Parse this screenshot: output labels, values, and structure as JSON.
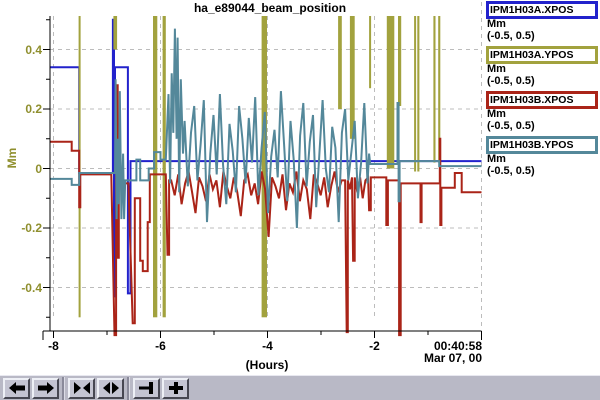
{
  "title": "ha_e89044_beam_position",
  "colors": {
    "blue": "#2222cc",
    "olive": "#a2a23e",
    "red": "#aa2418",
    "teal": "#54889a",
    "y_axis_text": "#8f8f2e",
    "grid": "#bcbcbc",
    "axis": "#000000",
    "toolbar_bg": "#b9b9c6"
  },
  "legend": [
    {
      "name": "IPM1H03A.XPOS",
      "unit": "Mm",
      "range": "(-0.5, 0.5)",
      "color": "#2222cc"
    },
    {
      "name": "IPM1H03A.YPOS",
      "unit": "Mm",
      "range": "(-0.5, 0.5)",
      "color": "#a2a23e"
    },
    {
      "name": "IPM1H03B.XPOS",
      "unit": "Mm",
      "range": "(-0.5, 0.5)",
      "color": "#aa2418"
    },
    {
      "name": "IPM1H03B.YPOS",
      "unit": "Mm",
      "range": "(-0.5, 0.5)",
      "color": "#54889a"
    }
  ],
  "y_axis": {
    "label": "Mm",
    "ticks": [
      {
        "v": 0.4,
        "label": "0.4"
      },
      {
        "v": 0.2,
        "label": "0.2"
      },
      {
        "v": 0,
        "label": "0"
      },
      {
        "v": -0.2,
        "label": "-0.2"
      },
      {
        "v": -0.4,
        "label": "-0.4"
      }
    ],
    "minor": [
      0.5,
      0.3,
      0.1,
      -0.1,
      -0.3,
      -0.5
    ]
  },
  "x_axis": {
    "label": "(Hours)",
    "ticks": [
      {
        "h": -8,
        "label": "-8"
      },
      {
        "h": -6,
        "label": "-6"
      },
      {
        "h": -4,
        "label": "-4"
      },
      {
        "h": -2,
        "label": "-2"
      }
    ],
    "minor": [
      -7,
      -5,
      -3,
      -1
    ],
    "end_time": "00:40:58",
    "end_date": "Mar 07, 00"
  },
  "toolbar": {
    "buttons": [
      {
        "name": "pan-left-button",
        "icon": "arrow-left"
      },
      {
        "name": "pan-right-button",
        "icon": "arrow-right"
      },
      {
        "name": "compress-time-button",
        "icon": "triangles-in"
      },
      {
        "name": "expand-time-button",
        "icon": "triangles-out"
      },
      {
        "name": "go-to-now-button",
        "icon": "arrow-to-bar"
      },
      {
        "name": "zoom-plus-button",
        "icon": "plus"
      }
    ],
    "groups": [
      2,
      2,
      2
    ]
  },
  "chart_data": {
    "type": "line",
    "title": "ha_e89044_beam_position",
    "xlabel": "(Hours)",
    "ylabel": "Mm",
    "xlim": [
      -8.06,
      0
    ],
    "ylim": [
      -0.5,
      0.5
    ],
    "grid": true,
    "legend_position": "right",
    "series": [
      {
        "name": "IPM1H03A.XPOS",
        "color": "#2222cc",
        "points": [
          [
            -8.06,
            0.34
          ],
          [
            -7.52,
            0.34
          ],
          [
            -7.52,
            -0.015
          ],
          [
            -6.89,
            -0.015
          ],
          [
            -6.89,
            0.5
          ],
          [
            -6.87,
            0.5
          ],
          [
            -6.87,
            -0.43
          ],
          [
            -6.85,
            -0.43
          ],
          [
            -6.85,
            0.34
          ],
          [
            -6.61,
            0.34
          ],
          [
            -6.61,
            -0.42
          ],
          [
            -6.56,
            -0.42
          ],
          [
            -6.56,
            0.025
          ],
          [
            0,
            0.025
          ]
        ]
      },
      {
        "name": "IPM1H03B.XPOS",
        "color": "#aa2418",
        "points": [
          [
            -8.06,
            0.09
          ],
          [
            -7.66,
            0.09
          ],
          [
            -7.66,
            0.06
          ],
          [
            -7.52,
            0.06
          ],
          [
            -7.52,
            -0.13
          ],
          [
            -7.5,
            -0.13
          ],
          [
            -7.5,
            -0.02
          ],
          [
            -6.92,
            -0.02
          ],
          [
            -6.86,
            -0.56
          ],
          [
            -6.83,
            -0.56
          ],
          [
            -6.83,
            0.28
          ],
          [
            -6.8,
            0.28
          ],
          [
            -6.8,
            -0.3
          ],
          [
            -6.78,
            -0.3
          ],
          [
            -6.78,
            0.1
          ],
          [
            -6.76,
            0.1
          ],
          [
            -6.76,
            -0.05
          ],
          [
            -6.6,
            -0.05
          ],
          [
            -6.52,
            -0.52
          ],
          [
            -6.48,
            -0.52
          ],
          [
            -6.48,
            -0.1
          ],
          [
            -6.38,
            -0.1
          ],
          [
            -6.38,
            -0.31
          ],
          [
            -6.33,
            -0.31
          ],
          [
            -6.33,
            -0.345
          ],
          [
            -6.24,
            -0.345
          ],
          [
            -6.24,
            -0.18
          ],
          [
            -6.2,
            -0.18
          ],
          [
            -6.2,
            -0.02
          ],
          [
            -5.9,
            -0.02
          ],
          [
            -5.87,
            -0.29
          ],
          [
            -5.84,
            -0.29
          ],
          [
            -5.84,
            -0.04
          ],
          [
            -5.8,
            -0.04
          ],
          [
            -5.735,
            -0.09
          ],
          [
            -5.67,
            -0.02
          ],
          [
            -5.605,
            -0.12
          ],
          [
            -5.54,
            -0.05
          ],
          [
            -5.475,
            -0.01
          ],
          [
            -5.41,
            -0.08
          ],
          [
            -5.345,
            -0.15
          ],
          [
            -5.28,
            -0.03
          ],
          [
            -5.215,
            -0.06
          ],
          [
            -5.15,
            -0.11
          ],
          [
            -5.085,
            -0.02
          ],
          [
            -5.02,
            -0.07
          ],
          [
            -4.955,
            -0.04
          ],
          [
            -4.89,
            -0.13
          ],
          [
            -4.825,
            -0.01
          ],
          [
            -4.76,
            -0.06
          ],
          [
            -4.695,
            -0.1
          ],
          [
            -4.63,
            -0.03
          ],
          [
            -4.565,
            -0.08
          ],
          [
            -4.5,
            -0.16
          ],
          [
            -4.435,
            -0.04
          ],
          [
            -4.37,
            -0.02
          ],
          [
            -4.305,
            -0.09
          ],
          [
            -4.24,
            -0.05
          ],
          [
            -4.175,
            -0.12
          ],
          [
            -4.11,
            -0.01
          ],
          [
            -4.045,
            -0.07
          ],
          [
            -3.98,
            -0.23
          ],
          [
            -3.915,
            -0.03
          ],
          [
            -3.85,
            -0.06
          ],
          [
            -3.785,
            -0.1
          ],
          [
            -3.72,
            -0.02
          ],
          [
            -3.655,
            -0.14
          ],
          [
            -3.59,
            -0.05
          ],
          [
            -3.525,
            -0.08
          ],
          [
            -3.46,
            -0.01
          ],
          [
            -3.395,
            -0.11
          ],
          [
            -3.33,
            -0.04
          ],
          [
            -3.265,
            -0.07
          ],
          [
            -3.2,
            -0.17
          ],
          [
            -3.135,
            -0.02
          ],
          [
            -3.07,
            -0.05
          ],
          [
            -3.005,
            -0.09
          ],
          [
            -2.94,
            -0.03
          ],
          [
            -2.875,
            -0.13
          ],
          [
            -2.81,
            -0.06
          ],
          [
            -2.745,
            -0.01
          ],
          [
            -2.68,
            -0.08
          ],
          [
            -2.615,
            -0.04
          ],
          [
            -2.55,
            -0.04
          ],
          [
            -2.52,
            -0.55
          ],
          [
            -2.5,
            -0.55
          ],
          [
            -2.5,
            -0.04
          ],
          [
            -2.46,
            -0.07
          ],
          [
            -2.42,
            -0.03
          ],
          [
            -2.4,
            -0.31
          ],
          [
            -2.37,
            -0.31
          ],
          [
            -2.37,
            -0.03
          ],
          [
            -2.32,
            -0.08
          ],
          [
            -2.27,
            -0.03
          ],
          [
            -2.22,
            -0.1
          ],
          [
            -2.17,
            -0.04
          ],
          [
            -2.12,
            -0.03
          ],
          [
            -2.1,
            -0.14
          ],
          [
            -2.07,
            -0.14
          ],
          [
            -2.07,
            -0.03
          ],
          [
            -1.78,
            -0.03
          ],
          [
            -1.78,
            -0.19
          ],
          [
            -1.75,
            -0.19
          ],
          [
            -1.75,
            -0.04
          ],
          [
            -1.54,
            -0.04
          ],
          [
            -1.54,
            -0.56
          ],
          [
            -1.51,
            -0.56
          ],
          [
            -1.51,
            -0.05
          ],
          [
            -1.14,
            -0.05
          ],
          [
            -1.14,
            -0.18
          ],
          [
            -1.12,
            -0.18
          ],
          [
            -1.12,
            -0.05
          ],
          [
            -0.78,
            -0.05
          ],
          [
            -0.78,
            0.1
          ],
          [
            -0.77,
            0.1
          ],
          [
            -0.77,
            -0.19
          ],
          [
            -0.75,
            -0.19
          ],
          [
            -0.75,
            -0.065
          ],
          [
            -0.5,
            -0.065
          ],
          [
            -0.5,
            -0.015
          ],
          [
            -0.37,
            -0.015
          ],
          [
            -0.37,
            -0.08
          ],
          [
            0,
            -0.08
          ]
        ]
      },
      {
        "name": "IPM1H03B.YPOS",
        "color": "#54889a",
        "points": [
          [
            -8.06,
            -0.035
          ],
          [
            -7.66,
            -0.035
          ],
          [
            -7.66,
            -0.055
          ],
          [
            -7.52,
            -0.055
          ],
          [
            -7.52,
            -0.015
          ],
          [
            -6.85,
            -0.015
          ],
          [
            -6.84,
            0.3
          ],
          [
            -6.82,
            -0.17
          ],
          [
            -6.8,
            0.1
          ],
          [
            -6.78,
            -0.12
          ],
          [
            -6.76,
            0.26
          ],
          [
            -6.73,
            -0.17
          ],
          [
            -6.7,
            0.05
          ],
          [
            -6.68,
            -0.17
          ],
          [
            -6.66,
            -0.04
          ],
          [
            -6.55,
            -0.04
          ],
          [
            -6.45,
            -0.04
          ],
          [
            -6.45,
            0.03
          ],
          [
            -6.38,
            0.03
          ],
          [
            -6.38,
            -0.04
          ],
          [
            -6.22,
            -0.04
          ],
          [
            -6.22,
            0.0
          ],
          [
            -6.12,
            0.0
          ],
          [
            -6.12,
            0.055
          ],
          [
            -6.0,
            0.055
          ],
          [
            -6.0,
            0.03
          ],
          [
            -5.9,
            0.03
          ],
          [
            -5.85,
            0.25
          ],
          [
            -5.82,
            -0.05
          ],
          [
            -5.79,
            0.32
          ],
          [
            -5.76,
            0.12
          ],
          [
            -5.73,
            0.47
          ],
          [
            -5.7,
            0.1
          ],
          [
            -5.68,
            0.44
          ],
          [
            -5.65,
            -0.08
          ],
          [
            -5.62,
            0.3
          ],
          [
            -5.58,
            0.05
          ],
          [
            -5.55,
            0.16
          ],
          [
            -5.49,
            -0.06
          ],
          [
            -5.43,
            0.12
          ],
          [
            -5.37,
            0.21
          ],
          [
            -5.31,
            -0.04
          ],
          [
            -5.25,
            0.08
          ],
          [
            -5.19,
            0.23
          ],
          [
            -5.13,
            -0.18
          ],
          [
            -5.07,
            0.05
          ],
          [
            -5.01,
            0.18
          ],
          [
            -4.95,
            -0.02
          ],
          [
            -4.89,
            0.25
          ],
          [
            -4.83,
            0.01
          ],
          [
            -4.77,
            -0.12
          ],
          [
            -4.71,
            0.15
          ],
          [
            -4.65,
            0.06
          ],
          [
            -4.59,
            -0.08
          ],
          [
            -4.53,
            0.21
          ],
          [
            -4.47,
            0.1
          ],
          [
            -4.41,
            -0.05
          ],
          [
            -4.35,
            0.17
          ],
          [
            -4.29,
            0.02
          ],
          [
            -4.23,
            0.24
          ],
          [
            -4.17,
            -0.09
          ],
          [
            -4.11,
            0.07
          ],
          [
            -4.05,
            0.19
          ],
          [
            -3.99,
            -0.15
          ],
          [
            -3.93,
            0.04
          ],
          [
            -3.87,
            0.13
          ],
          [
            -3.81,
            -0.03
          ],
          [
            -3.75,
            0.26
          ],
          [
            -3.69,
            0.08
          ],
          [
            -3.63,
            -0.11
          ],
          [
            -3.57,
            0.16
          ],
          [
            -3.51,
            0.03
          ],
          [
            -3.45,
            -0.2
          ],
          [
            -3.39,
            0.11
          ],
          [
            -3.33,
            0.22
          ],
          [
            -3.27,
            -0.06
          ],
          [
            -3.21,
            0.09
          ],
          [
            -3.15,
            0.18
          ],
          [
            -3.09,
            -0.13
          ],
          [
            -3.03,
            0.05
          ],
          [
            -2.97,
            0.23
          ],
          [
            -2.91,
            0.0
          ],
          [
            -2.85,
            -0.08
          ],
          [
            -2.79,
            0.14
          ],
          [
            -2.73,
            0.07
          ],
          [
            -2.67,
            -0.18
          ],
          [
            -2.61,
            0.12
          ],
          [
            -2.55,
            0.2
          ],
          [
            -2.49,
            -0.04
          ],
          [
            -2.43,
            0.06
          ],
          [
            -2.37,
            0.16
          ],
          [
            -2.31,
            -0.1
          ],
          [
            -2.25,
            0.02
          ],
          [
            -2.19,
            0.22
          ],
          [
            -2.16,
            0.09
          ],
          [
            -2.13,
            -0.05
          ],
          [
            -2.1,
            0.05
          ],
          [
            -2.08,
            0.015
          ],
          [
            -1.57,
            0.015
          ],
          [
            -1.57,
            0.22
          ],
          [
            -1.55,
            0.22
          ],
          [
            -1.55,
            -0.11
          ],
          [
            -1.53,
            -0.11
          ],
          [
            -1.53,
            0.025
          ],
          [
            -0.79,
            0.025
          ],
          [
            -0.79,
            0.008
          ],
          [
            0,
            0.008
          ]
        ]
      }
    ],
    "olive_bands": {
      "name": "IPM1H03A.YPOS",
      "color": "#a2a23e",
      "note": "channel pegged above +0.5; dips drawn as vertical bands [h_start, h_end, bottom_value]",
      "bands": [
        [
          -7.53,
          -7.5,
          -0.5
        ],
        [
          -6.88,
          -6.81,
          0.4
        ],
        [
          -6.14,
          -6.06,
          -0.5
        ],
        [
          -5.96,
          -5.9,
          -0.5
        ],
        [
          -4.11,
          -4.01,
          -0.5
        ],
        [
          -2.68,
          -2.61,
          0.2
        ],
        [
          -2.46,
          -2.37,
          0.1
        ],
        [
          -2.1,
          -2.07,
          0.27
        ],
        [
          -1.77,
          -1.63,
          0.0
        ],
        [
          -1.56,
          -1.5,
          0.21
        ],
        [
          -1.26,
          -1.23,
          -0.01
        ],
        [
          -1.2,
          -1.16,
          -0.01
        ],
        [
          -0.9,
          -0.86,
          0.02
        ],
        [
          -0.81,
          -0.77,
          0.02
        ]
      ]
    }
  }
}
